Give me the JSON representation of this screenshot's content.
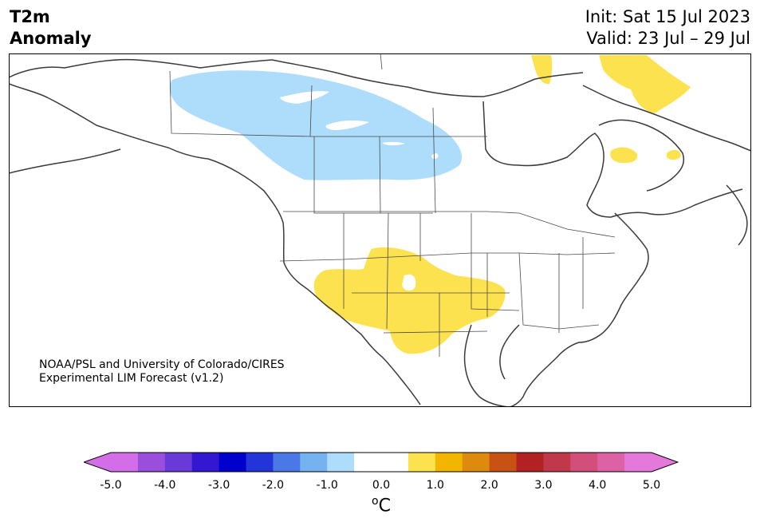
{
  "title": {
    "line1": "T2m",
    "line2": "Anomaly"
  },
  "info": {
    "init": "Init: Sat 15 Jul 2023",
    "valid": "Valid: 23 Jul – 29 Jul"
  },
  "credit": {
    "line1": "NOAA/PSL and University of Colorado/CIRES",
    "line2": "Experimental LIM Forecast (v1.2)"
  },
  "colorbar": {
    "ticks": [
      "-5.0",
      "-4.0",
      "-3.0",
      "-2.0",
      "-1.0",
      "0.0",
      "1.0",
      "2.0",
      "3.0",
      "4.0",
      "5.0"
    ],
    "unit_base": "C",
    "unit_sup": "o",
    "colors": [
      "#d46ee8",
      "#9a4fdc",
      "#6a3ad9",
      "#3417d0",
      "#0000cc",
      "#2235d8",
      "#4a78e6",
      "#74b2f0",
      "#aedcfb",
      "#ffffff",
      "#ffffff",
      "#fde24f",
      "#f2b600",
      "#de8a0f",
      "#c85114",
      "#b22222",
      "#c0394b",
      "#d14f7a",
      "#dd62a5",
      "#e579db"
    ],
    "under_color": "#d46ee8",
    "over_color": "#e579db"
  },
  "regions": {
    "cold": "#aedcfb",
    "warm": "#fde24f"
  }
}
